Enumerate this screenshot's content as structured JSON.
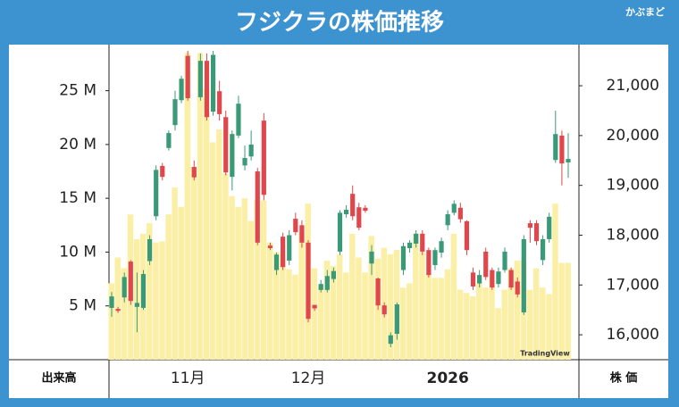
{
  "chart_data": {
    "type": "candlestick",
    "title": "フジクラの株価推移",
    "logo": "かぶまど",
    "watermark": "TradingView",
    "volume_label": "出来高",
    "price_label": "株 価",
    "up_color": "#3a9a78",
    "down_color": "#e0474c",
    "volume_color": "#fbefa6",
    "categories": [
      null,
      null,
      null,
      null,
      null,
      null,
      null,
      null,
      null,
      null,
      null,
      null,
      "11月",
      null,
      null,
      null,
      null,
      null,
      null,
      null,
      null,
      null,
      null,
      null,
      null,
      null,
      null,
      null,
      null,
      null,
      null,
      "12月",
      null,
      null,
      null,
      null,
      null,
      null,
      null,
      null,
      null,
      null,
      null,
      null,
      null,
      null,
      null,
      null,
      null,
      null,
      null,
      null,
      null,
      "2026",
      null,
      null,
      null,
      null,
      null,
      null,
      null,
      null,
      null,
      null,
      null,
      null,
      null,
      null,
      null,
      null,
      null,
      null,
      null
    ],
    "open": [
      16540,
      16520,
      16750,
      17470,
      16560,
      16540,
      17480,
      18380,
      19390,
      19750,
      20210,
      20710,
      21600,
      19370,
      20770,
      21500,
      20480,
      20890,
      20370,
      19170,
      20000,
      19400,
      19580,
      19280,
      20300,
      17790,
      17300,
      17970,
      17490,
      18330,
      18200,
      17850,
      16600,
      16900,
      16900,
      17120,
      17670,
      18420,
      18830,
      18560,
      18550,
      17430,
      17130,
      16590,
      15820,
      16020,
      17300,
      17740,
      17830,
      18030,
      17700,
      17400,
      17650,
      18200,
      18450,
      18550,
      18280,
      17250,
      17030,
      17670,
      17300,
      17020,
      17300,
      17300,
      17070,
      16450,
      18240,
      18240,
      17500,
      17920,
      19510,
      20000,
      19460
    ],
    "high": [
      16860,
      16560,
      17250,
      17500,
      17250,
      17300,
      18000,
      19400,
      19450,
      20100,
      20900,
      21200,
      21700,
      19500,
      21650,
      21650,
      21700,
      21100,
      20500,
      20100,
      20800,
      19800,
      20100,
      19350,
      20450,
      17850,
      17650,
      18050,
      18100,
      18450,
      18300,
      17900,
      16600,
      17100,
      17300,
      17350,
      18500,
      18600,
      19000,
      18650,
      18600,
      17800,
      17150,
      16650,
      16050,
      16650,
      17850,
      17900,
      18100,
      18100,
      17750,
      17750,
      17950,
      18500,
      18700,
      18650,
      18300,
      17350,
      17300,
      17750,
      17350,
      17350,
      17750,
      17350,
      17150,
      18000,
      18300,
      18300,
      18000,
      18450,
      20500,
      20100,
      20050
    ],
    "low": [
      16360,
      16440,
      16650,
      16600,
      16050,
      16500,
      17400,
      18300,
      19100,
      19700,
      20100,
      20650,
      20700,
      19100,
      20700,
      20300,
      20400,
      20300,
      19200,
      18900,
      19950,
      19300,
      19500,
      17800,
      18700,
      17700,
      17200,
      17300,
      17400,
      18000,
      17750,
      16250,
      16480,
      16850,
      16850,
      17050,
      17600,
      18350,
      18300,
      18100,
      18450,
      17200,
      16500,
      16350,
      15750,
      15900,
      17200,
      17650,
      17750,
      17600,
      17150,
      17300,
      17550,
      18100,
      18400,
      18250,
      17600,
      16900,
      16950,
      17100,
      16900,
      16950,
      17250,
      16900,
      16750,
      16400,
      17850,
      17800,
      17400,
      17850,
      19450,
      19000,
      19150
    ],
    "close": [
      16770,
      16480,
      17160,
      16680,
      16640,
      17220,
      17920,
      19310,
      19170,
      20050,
      20730,
      21140,
      20750,
      19160,
      21500,
      20370,
      21620,
      20430,
      19260,
      20030,
      20640,
      19550,
      19820,
      17850,
      18810,
      17740,
      17610,
      17360,
      18000,
      18060,
      17850,
      16320,
      16530,
      17020,
      17180,
      17280,
      18450,
      18510,
      18380,
      18150,
      18490,
      17670,
      16590,
      16410,
      15990,
      16610,
      17780,
      17850,
      18030,
      17670,
      17200,
      17700,
      17880,
      18420,
      18630,
      18320,
      17700,
      16970,
      17200,
      17160,
      16950,
      17270,
      17670,
      16950,
      16810,
      17920,
      18150,
      17880,
      17920,
      18370,
      20030,
      19440,
      19530
    ],
    "volume": [
      7.1,
      9.5,
      8.5,
      13.5,
      11.2,
      11.7,
      12.7,
      10.9,
      11.0,
      13.5,
      16.0,
      14.2,
      28.5,
      17.8,
      28.5,
      25.1,
      20.2,
      21.4,
      17.3,
      15.2,
      14.2,
      15.0,
      12.9,
      14.8,
      14.8,
      10.9,
      10.0,
      9.8,
      8.4,
      7.9,
      11.9,
      14.5,
      8.5,
      6.9,
      9.2,
      8.7,
      9.8,
      8.1,
      11.7,
      9.5,
      8.1,
      11.5,
      9.4,
      10.4,
      9.8,
      10.2,
      6.7,
      7.1,
      11.7,
      10.0,
      7.9,
      7.6,
      7.6,
      8.4,
      11.7,
      6.5,
      6.2,
      5.9,
      7.1,
      6.7,
      7.7,
      4.8,
      6.5,
      8.5,
      9.2,
      9.2,
      6.5,
      8.5,
      6.7,
      6.1,
      14.5,
      9.0,
      9.0
    ],
    "ylim": [
      0,
      28.7
    ],
    "yticks": [
      {
        "value": 5,
        "label": "5 M"
      },
      {
        "value": 10,
        "label": "10 M"
      },
      {
        "value": 15,
        "label": "15 M"
      },
      {
        "value": 20,
        "label": "20 M"
      },
      {
        "value": 25,
        "label": "25 M"
      }
    ],
    "y2lim": [
      15500,
      21700
    ],
    "y2ticks": [
      {
        "value": 16000,
        "label": "16,000"
      },
      {
        "value": 17000,
        "label": "17,000"
      },
      {
        "value": 18000,
        "label": "18,000"
      },
      {
        "value": 19000,
        "label": "19,000"
      },
      {
        "value": 20000,
        "label": "20,000"
      },
      {
        "value": 21000,
        "label": "21,000"
      }
    ]
  }
}
